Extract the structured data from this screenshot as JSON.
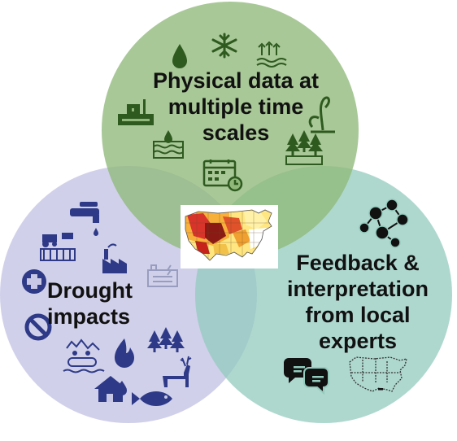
{
  "circles": {
    "physical": {
      "lines": [
        "Physical data at",
        "multiple time",
        "scales"
      ],
      "fill": "#8fb87a",
      "icons": [
        "water-drop-icon",
        "snowflake-icon",
        "evaporation-icon",
        "stream-gauge-icon",
        "plant-wilting-icon",
        "soil-moisture-icon",
        "forest-icon",
        "calendar-icon"
      ]
    },
    "drought": {
      "lines": [
        "Drought",
        "impacts"
      ],
      "fill": "#c8c8e6",
      "icons": [
        "faucet-icon",
        "farm-icon",
        "factory-icon",
        "power-plant-icon",
        "medical-cross-icon",
        "no-symbol-icon",
        "rafting-icon",
        "fire-icon",
        "trees-icon",
        "house-fire-icon",
        "fish-icon",
        "deer-icon"
      ]
    },
    "feedback": {
      "lines": [
        "Feedback &",
        "interpretation",
        "from local",
        "experts"
      ],
      "fill": "#93cbbd",
      "icons": [
        "network-people-icon",
        "chat-bubbles-icon",
        "us-map-outline-icon"
      ]
    }
  },
  "center": {
    "image": "drought-monitor-map"
  },
  "colors": {
    "icon": "#2e3a87",
    "icon_green": "#2f5a1f",
    "icon_dark": "#111111"
  }
}
